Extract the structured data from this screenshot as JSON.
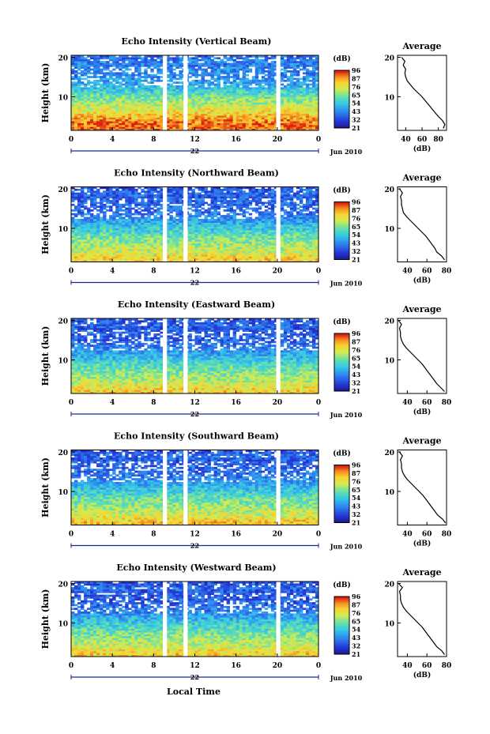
{
  "figure": {
    "xlabel": "Local Time",
    "day_label": "22",
    "month_label": "Jun 2010",
    "colorbar_unit": "(dB)",
    "colorbar_ticks": [
      "96",
      "87",
      "76",
      "65",
      "54",
      "43",
      "32",
      "21"
    ],
    "ylabel": "Height (km)",
    "avg_title": "Average",
    "avg_xlabel": "(dB)"
  },
  "chart_data": [
    {
      "type": "heatmap",
      "title": "Echo Intensity (Vertical Beam)",
      "xlabel": "Local Time",
      "ylabel": "Height (km)",
      "x_ticks": [
        "0",
        "4",
        "8",
        "12",
        "16",
        "20",
        "0"
      ],
      "xlim": [
        0,
        24
      ],
      "y_ticks": [
        "10",
        "20"
      ],
      "ylim": [
        1.5,
        20.5
      ],
      "zlim": [
        21,
        96
      ],
      "zunit": "dB",
      "data_gaps_hours": [
        [
          8.9,
          9.3
        ],
        [
          10.9,
          11.3
        ],
        [
          19.9,
          20.3
        ]
      ],
      "average_profile": {
        "title": "Average",
        "xlabel": "(dB)",
        "x_ticks": [
          "40",
          "60",
          "80"
        ],
        "xlim": [
          30,
          90
        ],
        "height_km": [
          2,
          3,
          4,
          5,
          6,
          7,
          8,
          9,
          10,
          11,
          12,
          13,
          14,
          15,
          16,
          17,
          18,
          19,
          20
        ],
        "db": [
          86,
          88,
          85,
          80,
          76,
          72,
          68,
          64,
          60,
          55,
          50,
          46,
          42,
          40,
          39,
          40,
          37,
          39,
          35
        ]
      }
    },
    {
      "type": "heatmap",
      "title": "Echo Intensity (Northward Beam)",
      "xlabel": "Local Time",
      "ylabel": "Height (km)",
      "x_ticks": [
        "0",
        "4",
        "8",
        "12",
        "16",
        "20",
        "0"
      ],
      "xlim": [
        0,
        24
      ],
      "y_ticks": [
        "10",
        "20"
      ],
      "ylim": [
        1.5,
        20.5
      ],
      "zlim": [
        21,
        96
      ],
      "zunit": "dB",
      "data_gaps_hours": [
        [
          8.9,
          9.3
        ],
        [
          10.9,
          11.3
        ],
        [
          19.9,
          20.3
        ]
      ],
      "average_profile": {
        "title": "Average",
        "xlabel": "(dB)",
        "x_ticks": [
          "40",
          "60",
          "80"
        ],
        "xlim": [
          30,
          80
        ],
        "height_km": [
          2,
          3,
          4,
          5,
          6,
          7,
          8,
          9,
          10,
          11,
          12,
          13,
          14,
          15,
          16,
          17,
          18,
          19,
          20
        ],
        "db": [
          78,
          75,
          70,
          68,
          65,
          62,
          59,
          55,
          51,
          47,
          43,
          39,
          36,
          35,
          34,
          34,
          33,
          35,
          32
        ]
      }
    },
    {
      "type": "heatmap",
      "title": "Echo Intensity (Eastward Beam)",
      "xlabel": "Local Time",
      "ylabel": "Height (km)",
      "x_ticks": [
        "0",
        "4",
        "8",
        "12",
        "16",
        "20",
        "0"
      ],
      "xlim": [
        0,
        24
      ],
      "y_ticks": [
        "10",
        "20"
      ],
      "ylim": [
        1.5,
        20.5
      ],
      "zlim": [
        21,
        96
      ],
      "zunit": "dB",
      "data_gaps_hours": [
        [
          8.9,
          9.3
        ],
        [
          10.9,
          11.3
        ],
        [
          19.9,
          20.3
        ]
      ],
      "average_profile": {
        "title": "Average",
        "xlabel": "(dB)",
        "x_ticks": [
          "40",
          "60",
          "80"
        ],
        "xlim": [
          30,
          80
        ],
        "height_km": [
          2,
          3,
          4,
          5,
          6,
          7,
          8,
          9,
          10,
          11,
          12,
          13,
          14,
          15,
          16,
          17,
          18,
          19,
          20
        ],
        "db": [
          78,
          74,
          70,
          67,
          64,
          61,
          58,
          55,
          51,
          47,
          43,
          39,
          36,
          34,
          33,
          33,
          32,
          34,
          31
        ]
      }
    },
    {
      "type": "heatmap",
      "title": "Echo Intensity (Southward Beam)",
      "xlabel": "Local Time",
      "ylabel": "Height (km)",
      "x_ticks": [
        "0",
        "4",
        "8",
        "12",
        "16",
        "20",
        "0"
      ],
      "xlim": [
        0,
        24
      ],
      "y_ticks": [
        "10",
        "20"
      ],
      "ylim": [
        1.5,
        20.5
      ],
      "zlim": [
        21,
        96
      ],
      "zunit": "dB",
      "data_gaps_hours": [
        [
          8.9,
          9.3
        ],
        [
          10.9,
          11.3
        ],
        [
          19.9,
          20.3
        ]
      ],
      "average_profile": {
        "title": "Average",
        "xlabel": "(dB)",
        "x_ticks": [
          "40",
          "60",
          "80"
        ],
        "xlim": [
          30,
          80
        ],
        "height_km": [
          2,
          3,
          4,
          5,
          6,
          7,
          8,
          9,
          10,
          11,
          12,
          13,
          14,
          15,
          16,
          17,
          18,
          19,
          20
        ],
        "db": [
          79,
          76,
          71,
          68,
          65,
          62,
          59,
          56,
          52,
          48,
          44,
          40,
          37,
          35,
          34,
          34,
          33,
          35,
          32
        ]
      }
    },
    {
      "type": "heatmap",
      "title": "Echo Intensity (Westward Beam)",
      "xlabel": "Local Time",
      "ylabel": "Height (km)",
      "x_ticks": [
        "0",
        "4",
        "8",
        "12",
        "16",
        "20",
        "0"
      ],
      "xlim": [
        0,
        24
      ],
      "y_ticks": [
        "10",
        "20"
      ],
      "ylim": [
        1.5,
        20.5
      ],
      "zlim": [
        21,
        96
      ],
      "zunit": "dB",
      "data_gaps_hours": [
        [
          8.9,
          9.3
        ],
        [
          10.9,
          11.3
        ],
        [
          19.9,
          20.3
        ]
      ],
      "average_profile": {
        "title": "Average",
        "xlabel": "(dB)",
        "x_ticks": [
          "40",
          "60",
          "80"
        ],
        "xlim": [
          30,
          80
        ],
        "height_km": [
          2,
          3,
          4,
          5,
          6,
          7,
          8,
          9,
          10,
          11,
          12,
          13,
          14,
          15,
          16,
          17,
          18,
          19,
          20
        ],
        "db": [
          78,
          75,
          70,
          67,
          64,
          61,
          58,
          55,
          51,
          47,
          43,
          39,
          36,
          34,
          33,
          33,
          32,
          35,
          31
        ]
      }
    }
  ]
}
